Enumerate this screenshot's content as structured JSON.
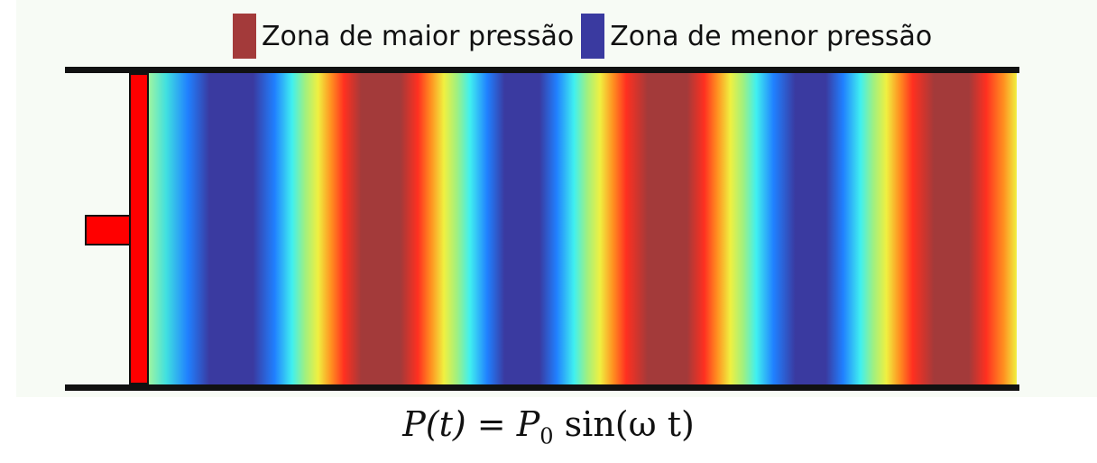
{
  "legend": {
    "high": {
      "label": "Zona de maior pressão",
      "color": "#a33a3a"
    },
    "low": {
      "label": "Zona de menor pressão",
      "color": "#3a3aa0"
    }
  },
  "formula": {
    "lhs": "P(t)",
    "eq": "=",
    "p0": "P",
    "sub": "0",
    "rhs": "sin(ω t)"
  },
  "colors": {
    "piston": "#ff0000",
    "rail": "#111111"
  }
}
